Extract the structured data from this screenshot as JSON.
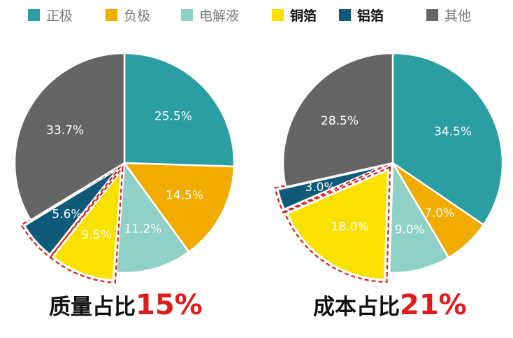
{
  "legend": [
    {
      "label": "正极",
      "color": "#2a9ea3",
      "bold": false
    },
    {
      "label": "负极",
      "color": "#f2ab00",
      "bold": false
    },
    {
      "label": "电解液",
      "color": "#8fd1c6",
      "bold": false
    },
    {
      "label": "铜箔",
      "color": "#fbe100",
      "bold": true
    },
    {
      "label": "铝箔",
      "color": "#0e5a78",
      "bold": true
    },
    {
      "label": "其他",
      "color": "#666566",
      "bold": false
    }
  ],
  "chart_data": [
    {
      "type": "pie",
      "categories": [
        "正极",
        "负极",
        "电解液",
        "铜箔",
        "铝箔",
        "其他"
      ],
      "values": [
        25.5,
        14.5,
        11.2,
        9.5,
        5.6,
        33.7
      ],
      "labels": [
        "25.5%",
        "14.5%",
        "11.2%",
        "9.5%",
        "5.6%",
        "33.7%"
      ],
      "exploded": [
        "铜箔",
        "铝箔"
      ],
      "caption": {
        "text": "质量占比",
        "value": "15%"
      }
    },
    {
      "type": "pie",
      "categories": [
        "正极",
        "负极",
        "电解液",
        "铜箔",
        "铝箔",
        "其他"
      ],
      "values": [
        34.5,
        7.0,
        9.0,
        18.0,
        3.0,
        28.5
      ],
      "labels": [
        "34.5%",
        "7.0%",
        "9.0%",
        "18.0%",
        "3.0%",
        "28.5%"
      ],
      "exploded": [
        "铜箔",
        "铝箔"
      ],
      "caption": {
        "text": "成本占比",
        "value": "21%"
      }
    }
  ]
}
